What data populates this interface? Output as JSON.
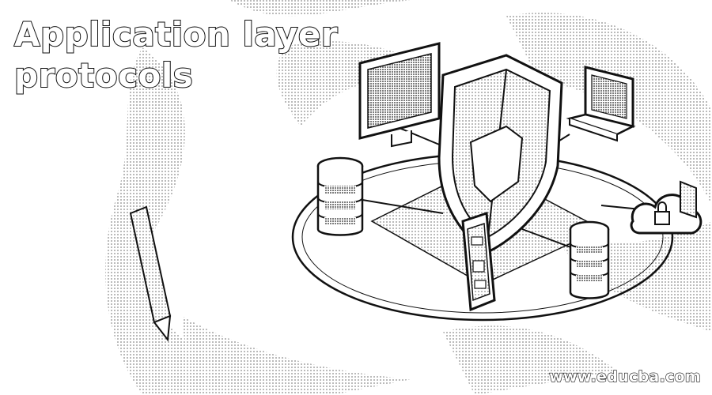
{
  "banner": {
    "title_line1": "Application layer",
    "title_line2": "protocols",
    "website": "www.educba.com"
  },
  "illustration": {
    "icons": [
      "shield-icon",
      "monitor-icon",
      "laptop-icon",
      "database-server-icon",
      "database-server-icon",
      "smartphone-icon",
      "cloud-lock-icon",
      "pen-icon"
    ],
    "colors": {
      "ink": "#111111",
      "paper": "#ffffff",
      "halftone": "#9a9a9a"
    }
  }
}
